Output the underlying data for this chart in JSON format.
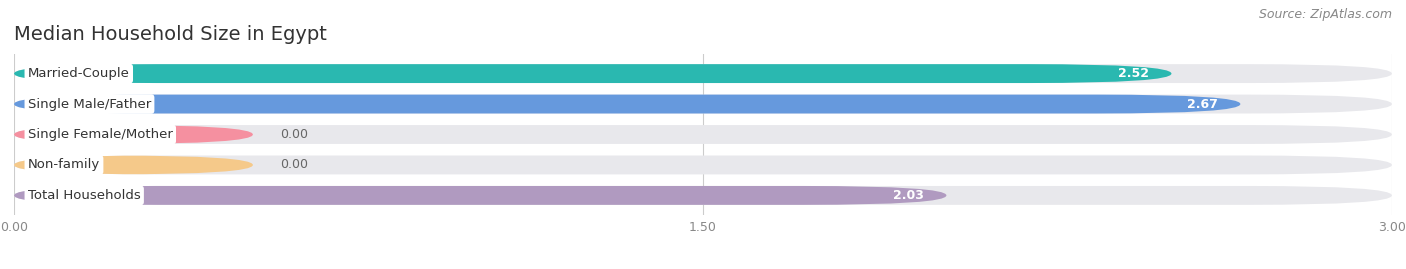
{
  "title": "Median Household Size in Egypt",
  "source": "Source: ZipAtlas.com",
  "categories": [
    "Married-Couple",
    "Single Male/Father",
    "Single Female/Mother",
    "Non-family",
    "Total Households"
  ],
  "values": [
    2.52,
    2.67,
    0.0,
    0.0,
    2.03
  ],
  "bar_colors": [
    "#2ab8b0",
    "#6699dd",
    "#f590a0",
    "#f5c98a",
    "#b09ac0"
  ],
  "bar_bg_color": "#e8e8ec",
  "xlim": [
    0,
    3.0
  ],
  "xticks": [
    0.0,
    1.5,
    3.0
  ],
  "xtick_labels": [
    "0.00",
    "1.50",
    "3.00"
  ],
  "title_fontsize": 14,
  "source_fontsize": 9,
  "label_fontsize": 9.5,
  "value_fontsize": 9,
  "background_color": "#ffffff",
  "bar_height": 0.62,
  "zero_bar_width": 0.52
}
